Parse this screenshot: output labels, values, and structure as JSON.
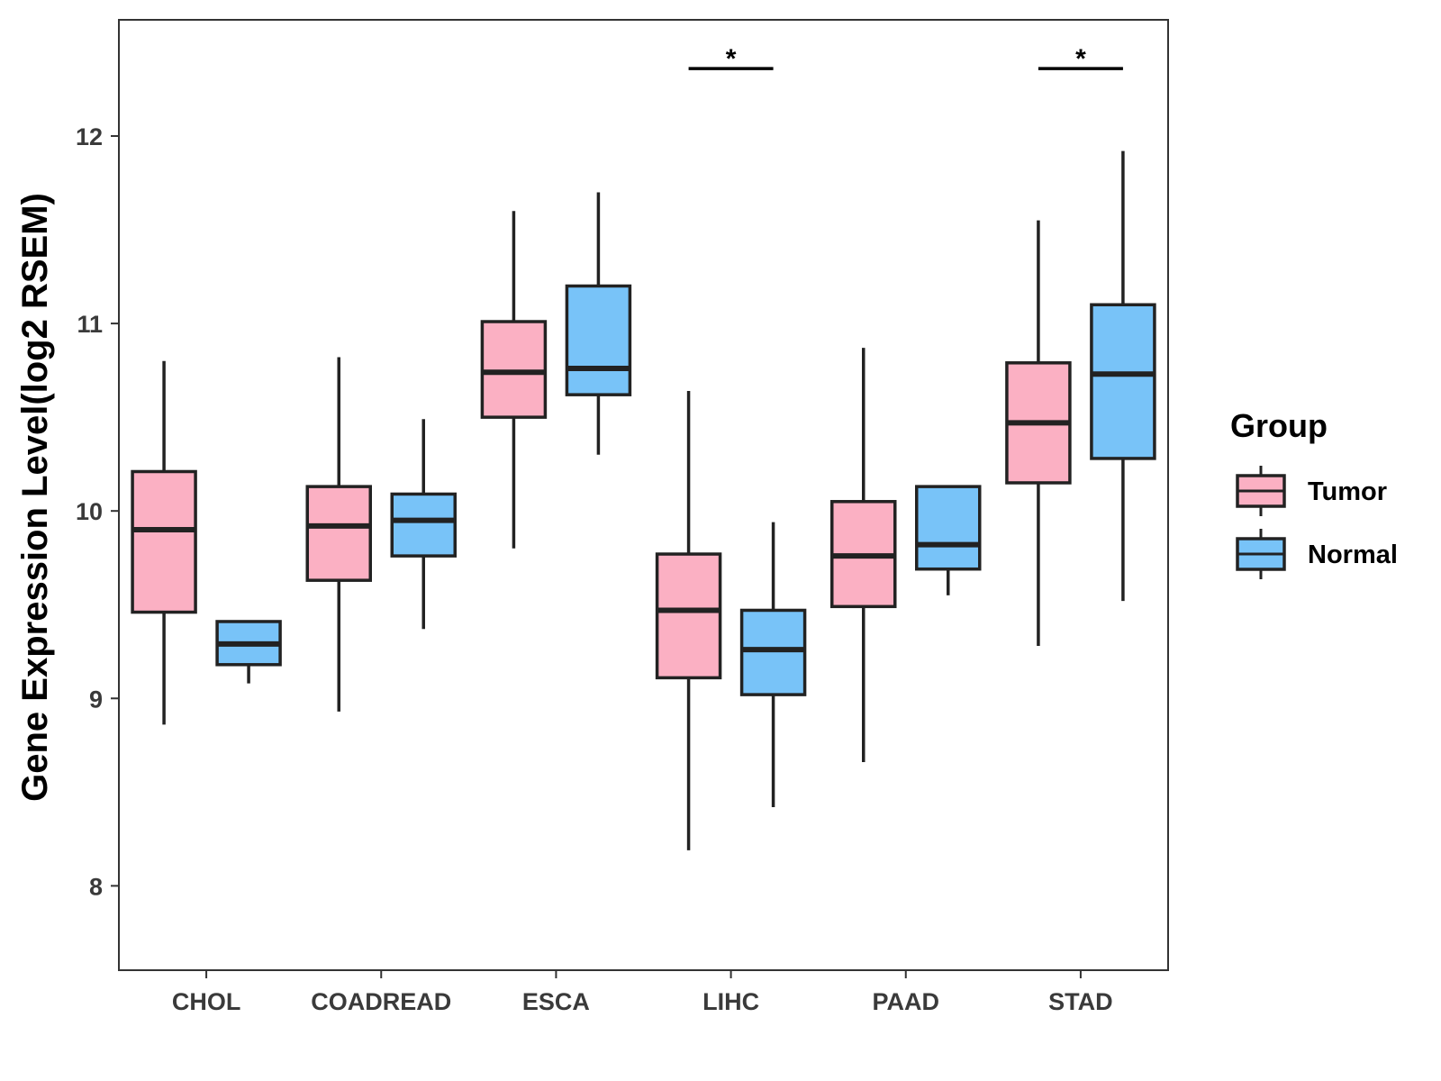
{
  "chart_data": {
    "type": "boxplot",
    "title": "",
    "xlabel": "",
    "ylabel": "Gene Expression Level(log2 RSEM)",
    "ylim": [
      7.55,
      12.62
    ],
    "yticks": [
      8,
      9,
      10,
      11,
      12
    ],
    "grid": false,
    "legend_title": "Group",
    "legend_position": "right",
    "categories": [
      "CHOL",
      "COADREAD",
      "ESCA",
      "LIHC",
      "PAAD",
      "STAD"
    ],
    "series": [
      {
        "name": "Tumor",
        "color": "#fbb0c3",
        "boxes": [
          {
            "min": 8.86,
            "q1": 9.46,
            "median": 9.9,
            "q3": 10.21,
            "max": 10.8
          },
          {
            "min": 8.93,
            "q1": 9.63,
            "median": 9.92,
            "q3": 10.13,
            "max": 10.82
          },
          {
            "min": 9.8,
            "q1": 10.5,
            "median": 10.74,
            "q3": 11.01,
            "max": 11.6
          },
          {
            "min": 8.19,
            "q1": 9.11,
            "median": 9.47,
            "q3": 9.77,
            "max": 10.64
          },
          {
            "min": 8.66,
            "q1": 9.49,
            "median": 9.76,
            "q3": 10.05,
            "max": 10.87
          },
          {
            "min": 9.28,
            "q1": 10.15,
            "median": 10.47,
            "q3": 10.79,
            "max": 11.55
          }
        ]
      },
      {
        "name": "Normal",
        "color": "#78c3f8",
        "boxes": [
          {
            "min": 9.08,
            "q1": 9.18,
            "median": 9.29,
            "q3": 9.41,
            "max": 9.41
          },
          {
            "min": 9.37,
            "q1": 9.76,
            "median": 9.95,
            "q3": 10.09,
            "max": 10.49
          },
          {
            "min": 10.3,
            "q1": 10.62,
            "median": 10.76,
            "q3": 11.2,
            "max": 11.7
          },
          {
            "min": 8.42,
            "q1": 9.02,
            "median": 9.26,
            "q3": 9.47,
            "max": 9.94
          },
          {
            "min": 9.55,
            "q1": 9.69,
            "median": 9.82,
            "q3": 10.13,
            "max": 10.13
          },
          {
            "min": 9.52,
            "q1": 10.28,
            "median": 10.73,
            "q3": 11.1,
            "max": 11.92
          }
        ]
      }
    ],
    "annotations": [
      {
        "category": "LIHC",
        "label": "*",
        "y": 12.36
      },
      {
        "category": "STAD",
        "label": "*",
        "y": 12.36
      }
    ]
  }
}
